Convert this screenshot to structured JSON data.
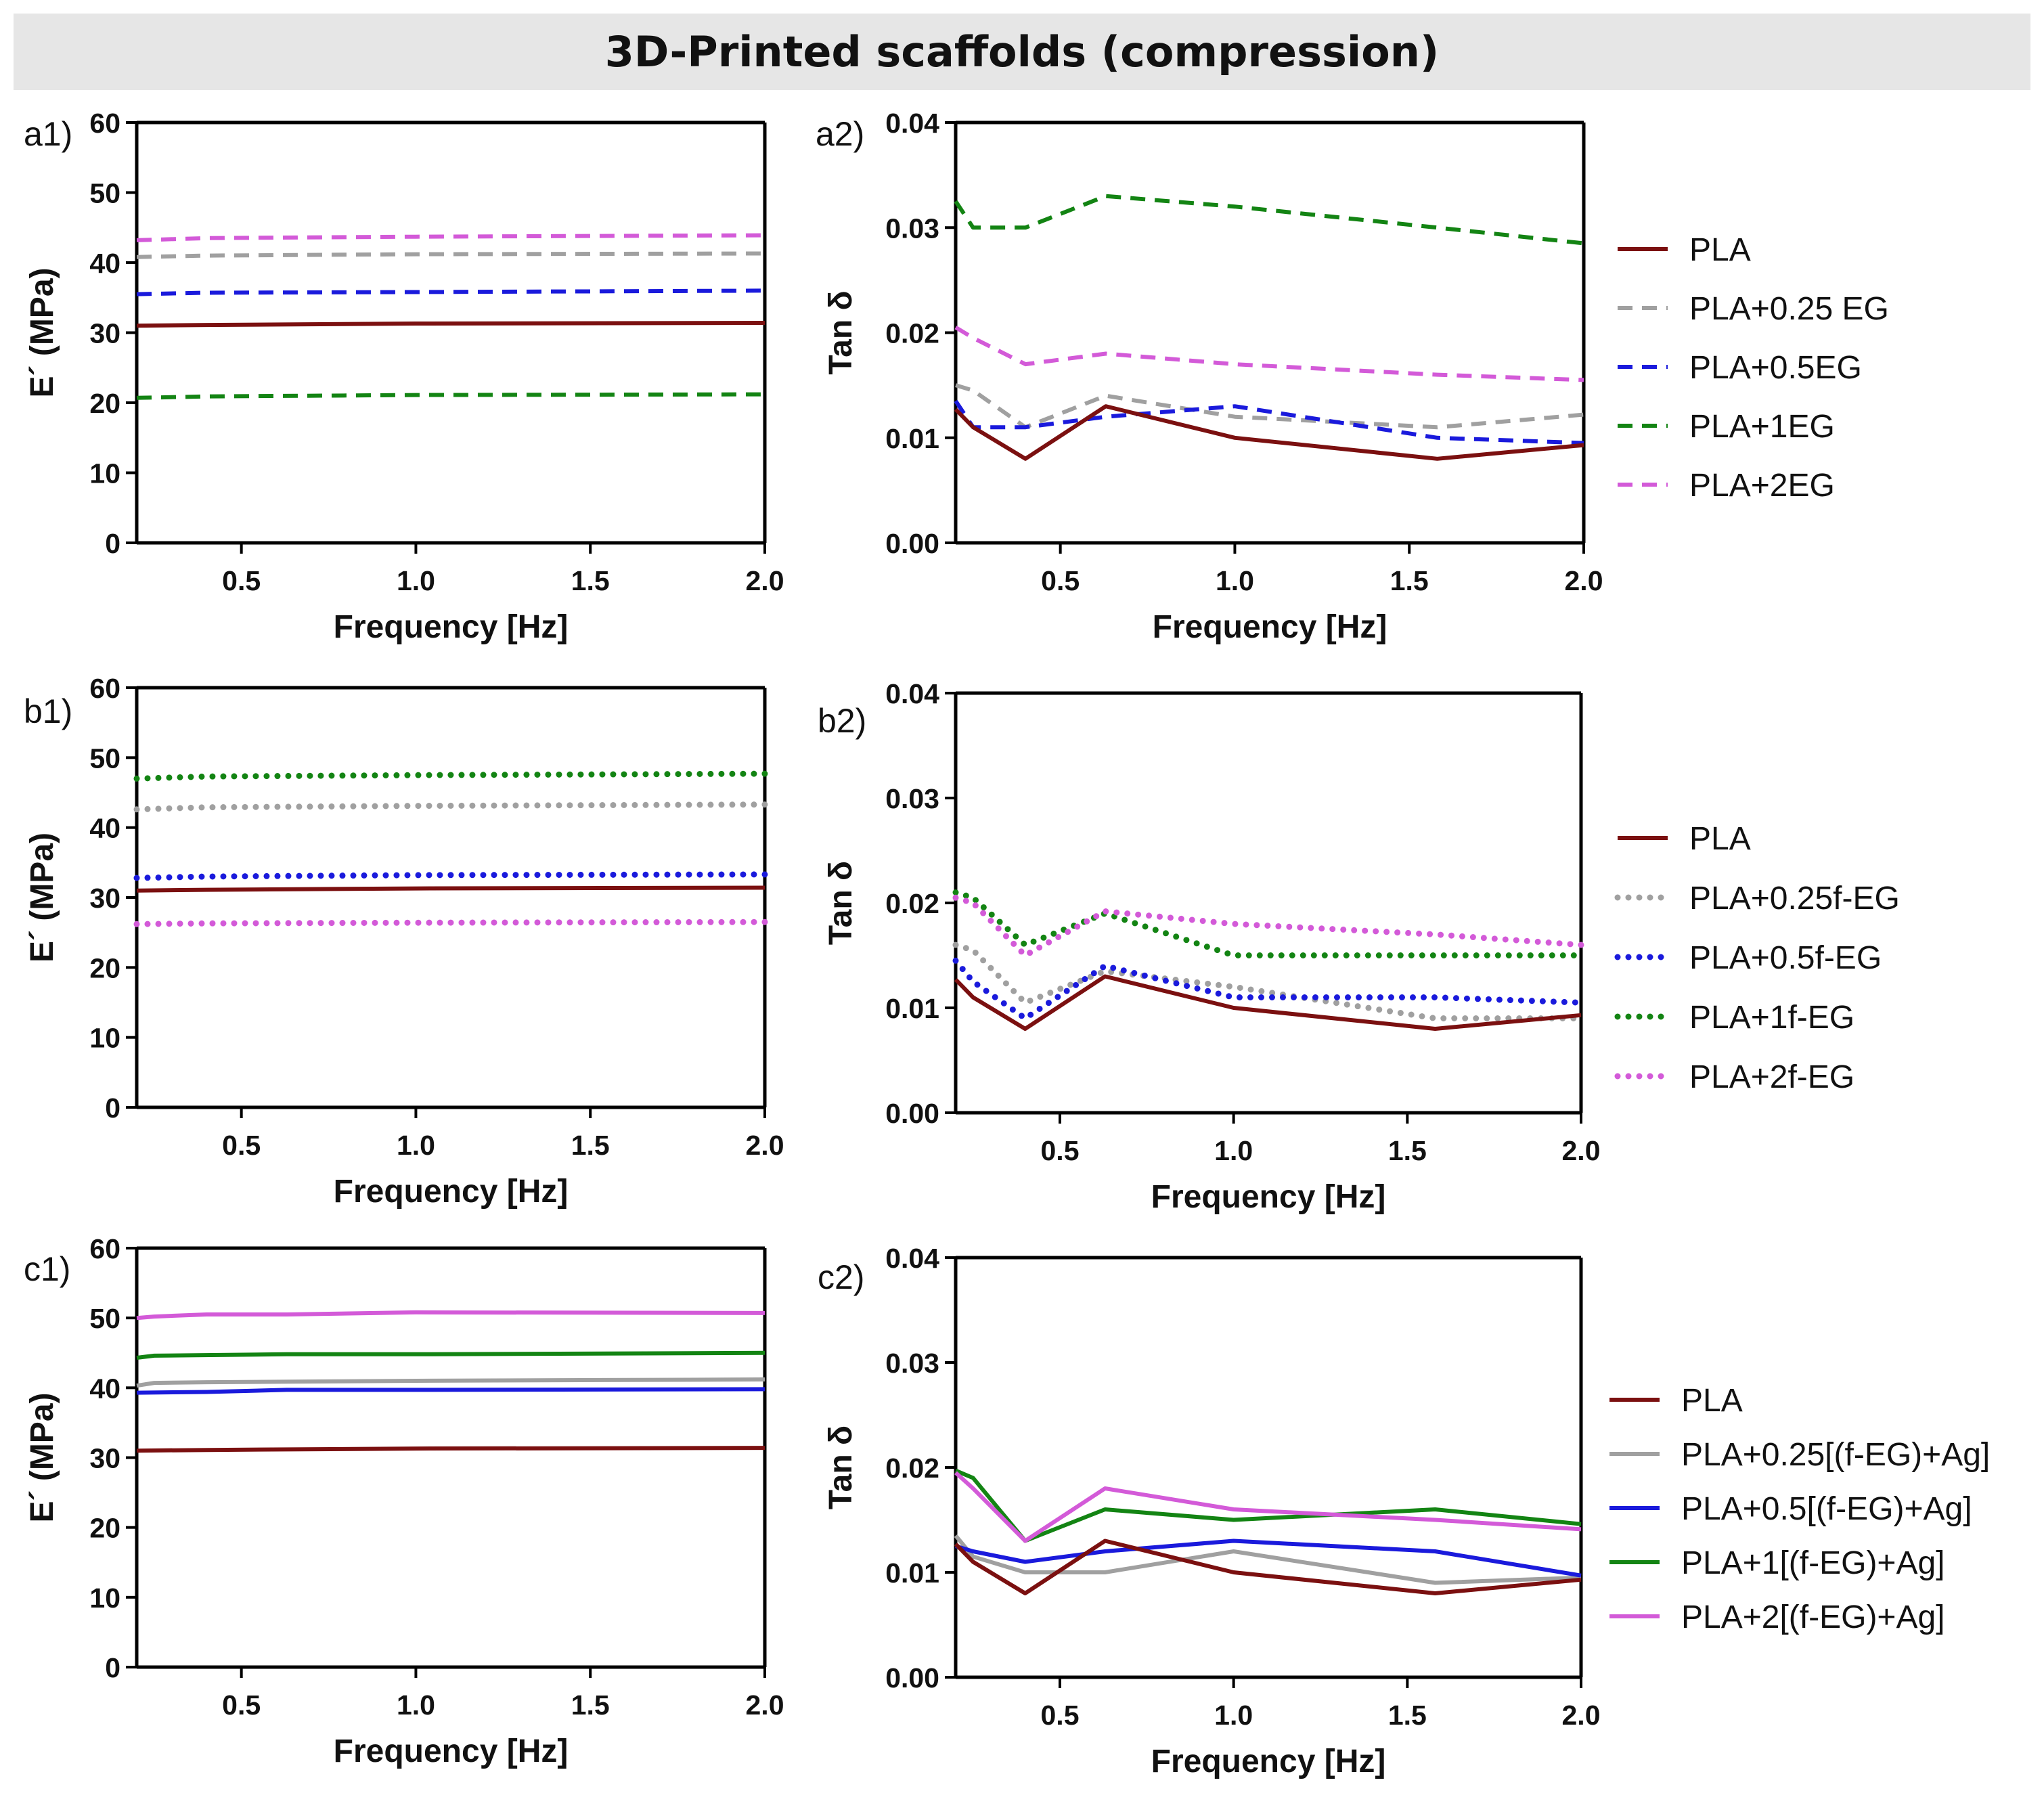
{
  "figure_title": "3D-Printed scaffolds (compression)",
  "chart_data": [
    {
      "id": "a1",
      "type": "line",
      "panel_label": "a1)",
      "xlabel": "Frequency [Hz]",
      "ylabel": "E´ (MPa)",
      "xlim": [
        0.2,
        2.0
      ],
      "ylim": [
        0,
        60
      ],
      "xticks": [
        0.5,
        1.0,
        1.5,
        2.0
      ],
      "xtick_labels": [
        "0.5",
        "1.0",
        "1.5",
        "2.0"
      ],
      "yticks": [
        0,
        10,
        20,
        30,
        40,
        50,
        60
      ],
      "ytick_labels": [
        "0",
        "10",
        "20",
        "30",
        "40",
        "50",
        "60"
      ],
      "series": [
        {
          "name": "PLA",
          "color": "#7b1010",
          "style": "solid",
          "x": [
            0.2,
            0.4,
            1.0,
            2.0
          ],
          "y": [
            31,
            31.1,
            31.3,
            31.4
          ]
        },
        {
          "name": "PLA+0.25 EG",
          "color": "#a0a0a0",
          "style": "dashed",
          "x": [
            0.2,
            0.4,
            1.0,
            2.0
          ],
          "y": [
            40.8,
            41,
            41.2,
            41.3
          ]
        },
        {
          "name": "PLA+0.5EG",
          "color": "#1a1adc",
          "style": "dashed",
          "x": [
            0.2,
            0.4,
            1.0,
            2.0
          ],
          "y": [
            35.5,
            35.7,
            35.8,
            36
          ]
        },
        {
          "name": "PLA+1EG",
          "color": "#138413",
          "style": "dashed",
          "x": [
            0.2,
            0.4,
            1.0,
            2.0
          ],
          "y": [
            20.7,
            20.9,
            21.1,
            21.2
          ]
        },
        {
          "name": "PLA+2EG",
          "color": "#d35ad8",
          "style": "dashed",
          "x": [
            0.2,
            0.4,
            1.0,
            2.0
          ],
          "y": [
            43.2,
            43.5,
            43.7,
            43.9
          ]
        }
      ]
    },
    {
      "id": "a2",
      "type": "line",
      "panel_label": "a2)",
      "xlabel": "Frequency [Hz]",
      "ylabel": "Tan δ",
      "xlim": [
        0.2,
        2.0
      ],
      "ylim": [
        0,
        0.04
      ],
      "xticks": [
        0.5,
        1.0,
        1.5,
        2.0
      ],
      "xtick_labels": [
        "0.5",
        "1.0",
        "1.5",
        "2.0"
      ],
      "yticks": [
        0,
        0.01,
        0.02,
        0.03,
        0.04
      ],
      "ytick_labels": [
        "0.00",
        "0.01",
        "0.02",
        "0.03",
        "0.04"
      ],
      "legend_position": "right",
      "series": [
        {
          "name": "PLA",
          "color": "#7b1010",
          "style": "solid",
          "x": [
            0.2,
            0.25,
            0.4,
            0.63,
            1.0,
            1.58,
            2.0
          ],
          "y": [
            0.0127,
            0.011,
            0.008,
            0.013,
            0.01,
            0.008,
            0.0093
          ]
        },
        {
          "name": "PLA+0.25 EG",
          "color": "#a0a0a0",
          "style": "dashed",
          "x": [
            0.2,
            0.25,
            0.4,
            0.63,
            1.0,
            1.58,
            2.0
          ],
          "y": [
            0.015,
            0.0145,
            0.011,
            0.014,
            0.012,
            0.011,
            0.0122
          ]
        },
        {
          "name": "PLA+0.5EG",
          "color": "#1a1adc",
          "style": "dashed",
          "x": [
            0.2,
            0.25,
            0.4,
            0.63,
            1.0,
            1.58,
            2.0
          ],
          "y": [
            0.0135,
            0.011,
            0.011,
            0.012,
            0.013,
            0.01,
            0.0095
          ]
        },
        {
          "name": "PLA+1EG",
          "color": "#138413",
          "style": "dashed",
          "x": [
            0.2,
            0.25,
            0.4,
            0.63,
            1.0,
            1.58,
            2.0
          ],
          "y": [
            0.0325,
            0.03,
            0.03,
            0.033,
            0.032,
            0.03,
            0.0285
          ]
        },
        {
          "name": "PLA+2EG",
          "color": "#d35ad8",
          "style": "dashed",
          "x": [
            0.2,
            0.25,
            0.4,
            0.63,
            1.0,
            1.58,
            2.0
          ],
          "y": [
            0.0205,
            0.0195,
            0.017,
            0.018,
            0.017,
            0.016,
            0.0155
          ]
        }
      ]
    },
    {
      "id": "b1",
      "type": "line",
      "panel_label": "b1)",
      "xlabel": "Frequency [Hz]",
      "ylabel": "E´ (MPa)",
      "xlim": [
        0.2,
        2.0
      ],
      "ylim": [
        0,
        60
      ],
      "xticks": [
        0.5,
        1.0,
        1.5,
        2.0
      ],
      "xtick_labels": [
        "0.5",
        "1.0",
        "1.5",
        "2.0"
      ],
      "yticks": [
        0,
        10,
        20,
        30,
        40,
        50,
        60
      ],
      "ytick_labels": [
        "0",
        "10",
        "20",
        "30",
        "40",
        "50",
        "60"
      ],
      "series": [
        {
          "name": "PLA",
          "color": "#7b1010",
          "style": "solid",
          "x": [
            0.2,
            0.4,
            1.0,
            2.0
          ],
          "y": [
            31,
            31.1,
            31.3,
            31.4
          ]
        },
        {
          "name": "PLA+0.25f-EG",
          "color": "#a0a0a0",
          "style": "dotted",
          "x": [
            0.2,
            0.4,
            1.0,
            2.0
          ],
          "y": [
            42.6,
            42.9,
            43.1,
            43.3
          ]
        },
        {
          "name": "PLA+0.5f-EG",
          "color": "#1a1adc",
          "style": "dotted",
          "x": [
            0.2,
            0.4,
            1.0,
            2.0
          ],
          "y": [
            32.8,
            33,
            33.2,
            33.3
          ]
        },
        {
          "name": "PLA+1f-EG",
          "color": "#138413",
          "style": "dotted",
          "x": [
            0.2,
            0.4,
            1.0,
            2.0
          ],
          "y": [
            47,
            47.3,
            47.5,
            47.7
          ]
        },
        {
          "name": "PLA+2f-EG",
          "color": "#d35ad8",
          "style": "dotted",
          "x": [
            0.2,
            0.4,
            1.0,
            2.0
          ],
          "y": [
            26.2,
            26.3,
            26.4,
            26.5
          ]
        }
      ]
    },
    {
      "id": "b2",
      "type": "line",
      "panel_label": "b2)",
      "xlabel": "Frequency [Hz]",
      "ylabel": "Tan δ",
      "xlim": [
        0.2,
        2.0
      ],
      "ylim": [
        0,
        0.04
      ],
      "xticks": [
        0.5,
        1.0,
        1.5,
        2.0
      ],
      "xtick_labels": [
        "0.5",
        "1.0",
        "1.5",
        "2.0"
      ],
      "yticks": [
        0,
        0.01,
        0.02,
        0.03,
        0.04
      ],
      "ytick_labels": [
        "0.00",
        "0.01",
        "0.02",
        "0.03",
        "0.04"
      ],
      "legend_position": "right",
      "series": [
        {
          "name": "PLA",
          "color": "#7b1010",
          "style": "solid",
          "x": [
            0.2,
            0.25,
            0.4,
            0.63,
            1.0,
            1.58,
            2.0
          ],
          "y": [
            0.0127,
            0.011,
            0.008,
            0.013,
            0.01,
            0.008,
            0.0093
          ]
        },
        {
          "name": "PLA+0.25f-EG",
          "color": "#a0a0a0",
          "style": "dotted",
          "x": [
            0.2,
            0.25,
            0.4,
            0.63,
            1.0,
            1.58,
            2.0
          ],
          "y": [
            0.016,
            0.0155,
            0.0105,
            0.0135,
            0.012,
            0.009,
            0.009
          ]
        },
        {
          "name": "PLA+0.5f-EG",
          "color": "#1a1adc",
          "style": "dotted",
          "x": [
            0.2,
            0.25,
            0.4,
            0.63,
            1.0,
            1.58,
            2.0
          ],
          "y": [
            0.0145,
            0.0125,
            0.009,
            0.014,
            0.011,
            0.011,
            0.0105
          ]
        },
        {
          "name": "PLA+1f-EG",
          "color": "#138413",
          "style": "dotted",
          "x": [
            0.2,
            0.25,
            0.4,
            0.63,
            1.0,
            1.58,
            2.0
          ],
          "y": [
            0.021,
            0.0205,
            0.016,
            0.019,
            0.015,
            0.015,
            0.015
          ]
        },
        {
          "name": "PLA+2f-EG",
          "color": "#d35ad8",
          "style": "dotted",
          "x": [
            0.2,
            0.25,
            0.4,
            0.63,
            1.0,
            1.58,
            2.0
          ],
          "y": [
            0.0205,
            0.02,
            0.015,
            0.0192,
            0.018,
            0.017,
            0.016
          ]
        }
      ]
    },
    {
      "id": "c1",
      "type": "line",
      "panel_label": "c1)",
      "xlabel": "Frequency [Hz]",
      "ylabel": "E´ (MPa)",
      "xlim": [
        0.2,
        2.0
      ],
      "ylim": [
        0,
        60
      ],
      "xticks": [
        0.5,
        1.0,
        1.5,
        2.0
      ],
      "xtick_labels": [
        "0.5",
        "1.0",
        "1.5",
        "2.0"
      ],
      "yticks": [
        0,
        10,
        20,
        30,
        40,
        50,
        60
      ],
      "ytick_labels": [
        "0",
        "10",
        "20",
        "30",
        "40",
        "50",
        "60"
      ],
      "series": [
        {
          "name": "PLA",
          "color": "#7b1010",
          "style": "solid",
          "x": [
            0.2,
            0.4,
            1.0,
            2.0
          ],
          "y": [
            31,
            31.1,
            31.3,
            31.4
          ]
        },
        {
          "name": "PLA+0.25[(f-EG)+Ag]",
          "color": "#a0a0a0",
          "style": "solid",
          "x": [
            0.2,
            0.25,
            0.4,
            1.0,
            2.0
          ],
          "y": [
            40.3,
            40.7,
            40.8,
            41,
            41.2
          ]
        },
        {
          "name": "PLA+0.5[(f-EG)+Ag]",
          "color": "#1a1adc",
          "style": "solid",
          "x": [
            0.2,
            0.4,
            0.63,
            1.0,
            2.0
          ],
          "y": [
            39.3,
            39.4,
            39.7,
            39.7,
            39.8
          ]
        },
        {
          "name": "PLA+1[(f-EG)+Ag]",
          "color": "#138413",
          "style": "solid",
          "x": [
            0.2,
            0.25,
            0.63,
            1.0,
            2.0
          ],
          "y": [
            44.3,
            44.6,
            44.8,
            44.8,
            45
          ]
        },
        {
          "name": "PLA+2[(f-EG)+Ag]",
          "color": "#d35ad8",
          "style": "solid",
          "x": [
            0.2,
            0.25,
            0.4,
            0.63,
            1.0,
            2.0
          ],
          "y": [
            50,
            50.2,
            50.5,
            50.5,
            50.8,
            50.7
          ]
        }
      ]
    },
    {
      "id": "c2",
      "type": "line",
      "panel_label": "c2)",
      "xlabel": "Frequency [Hz]",
      "ylabel": "Tan δ",
      "xlim": [
        0.2,
        2.0
      ],
      "ylim": [
        0,
        0.04
      ],
      "xticks": [
        0.5,
        1.0,
        1.5,
        2.0
      ],
      "xtick_labels": [
        "0.5",
        "1.0",
        "1.5",
        "2.0"
      ],
      "yticks": [
        0,
        0.01,
        0.02,
        0.03,
        0.04
      ],
      "ytick_labels": [
        "0.00",
        "0.01",
        "0.02",
        "0.03",
        "0.04"
      ],
      "legend_position": "right",
      "series": [
        {
          "name": "PLA",
          "color": "#7b1010",
          "style": "solid",
          "x": [
            0.2,
            0.25,
            0.4,
            0.63,
            1.0,
            1.58,
            2.0
          ],
          "y": [
            0.0127,
            0.011,
            0.008,
            0.013,
            0.01,
            0.008,
            0.0093
          ]
        },
        {
          "name": "PLA+0.25[(f-EG)+Ag]",
          "color": "#a0a0a0",
          "style": "solid",
          "x": [
            0.2,
            0.25,
            0.4,
            0.63,
            1.0,
            1.58,
            2.0
          ],
          "y": [
            0.0135,
            0.0115,
            0.01,
            0.01,
            0.012,
            0.009,
            0.0095
          ]
        },
        {
          "name": "PLA+0.5[(f-EG)+Ag]",
          "color": "#1a1adc",
          "style": "solid",
          "x": [
            0.2,
            0.25,
            0.4,
            0.63,
            1.0,
            1.58,
            2.0
          ],
          "y": [
            0.0125,
            0.012,
            0.011,
            0.012,
            0.013,
            0.012,
            0.0097
          ]
        },
        {
          "name": "PLA+1[(f-EG)+Ag]",
          "color": "#138413",
          "style": "solid",
          "x": [
            0.2,
            0.25,
            0.4,
            0.63,
            1.0,
            1.58,
            2.0
          ],
          "y": [
            0.0197,
            0.019,
            0.013,
            0.016,
            0.015,
            0.016,
            0.0146
          ]
        },
        {
          "name": "PLA+2[(f-EG)+Ag]",
          "color": "#d35ad8",
          "style": "solid",
          "x": [
            0.2,
            0.25,
            0.4,
            0.63,
            1.0,
            1.58,
            2.0
          ],
          "y": [
            0.0195,
            0.018,
            0.013,
            0.018,
            0.016,
            0.015,
            0.0141
          ]
        }
      ]
    }
  ]
}
